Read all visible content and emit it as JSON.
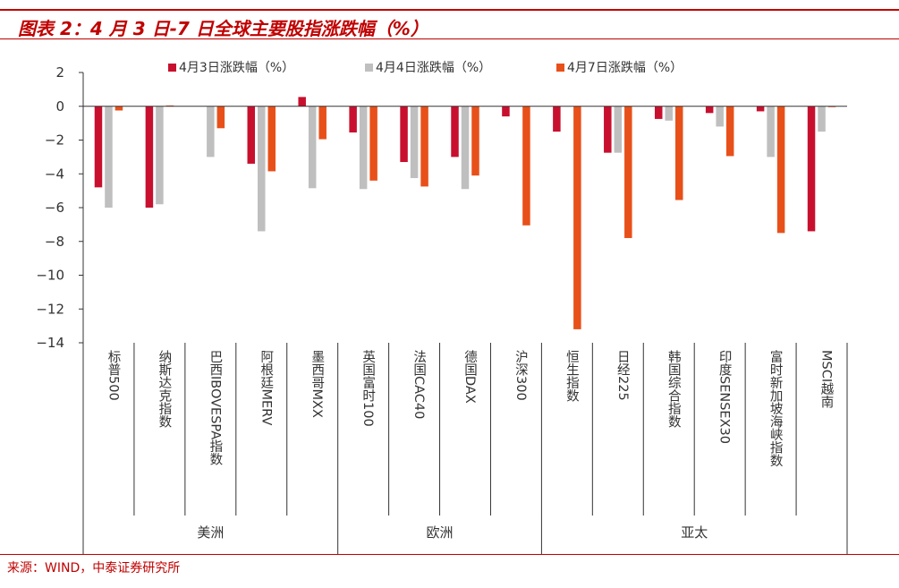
{
  "figure": {
    "title": "图表 2：4 月 3 日-7 日全球主要股指涨跌幅（%）",
    "source": "来源：WIND，中泰证券研究所"
  },
  "colors": {
    "accent": "#c00000",
    "series": [
      "#c8102e",
      "#bfbfbf",
      "#e8501a"
    ]
  },
  "chart_data": {
    "type": "bar",
    "title": "",
    "xlabel": "",
    "ylabel": "",
    "ylim": [
      -14,
      2
    ],
    "yticks": [
      2,
      0,
      -2,
      -4,
      -6,
      -8,
      -10,
      -12,
      -14
    ],
    "categories": [
      "标普500",
      "纳斯达克指数",
      "巴西IBOVESPA指数",
      "阿根廷MERV",
      "墨西哥MXX",
      "英国富时100",
      "法国CAC40",
      "德国DAX",
      "沪深300",
      "恒生指数",
      "日经225",
      "韩国综合指数",
      "印度SENSEX30",
      "富时新加坡海峡指数",
      "MSCI越南"
    ],
    "groups": [
      {
        "label": "美洲",
        "count": 5
      },
      {
        "label": "欧洲",
        "count": 4
      },
      {
        "label": "亚太",
        "count": 6
      }
    ],
    "series": [
      {
        "name": "4月3日涨跌幅（%）",
        "values": [
          -4.8,
          -6.0,
          0,
          -3.4,
          0.55,
          -1.55,
          -3.3,
          -3.0,
          -0.6,
          -1.5,
          -2.75,
          -0.75,
          -0.4,
          -0.3,
          -7.4
        ]
      },
      {
        "name": "4月4日涨跌幅（%）",
        "values": [
          -6.0,
          -5.8,
          -3.0,
          -7.4,
          -4.85,
          -4.9,
          -4.25,
          -4.9,
          0,
          0,
          -2.75,
          -0.85,
          -1.2,
          -3.0,
          -1.5
        ]
      },
      {
        "name": "4月7日涨跌幅（%）",
        "values": [
          -0.25,
          0.05,
          -1.3,
          -3.85,
          -1.95,
          -4.4,
          -4.75,
          -4.1,
          -7.05,
          -13.2,
          -7.8,
          -5.55,
          -2.95,
          -7.5,
          -0.05
        ]
      }
    ],
    "legend_position": "top"
  }
}
